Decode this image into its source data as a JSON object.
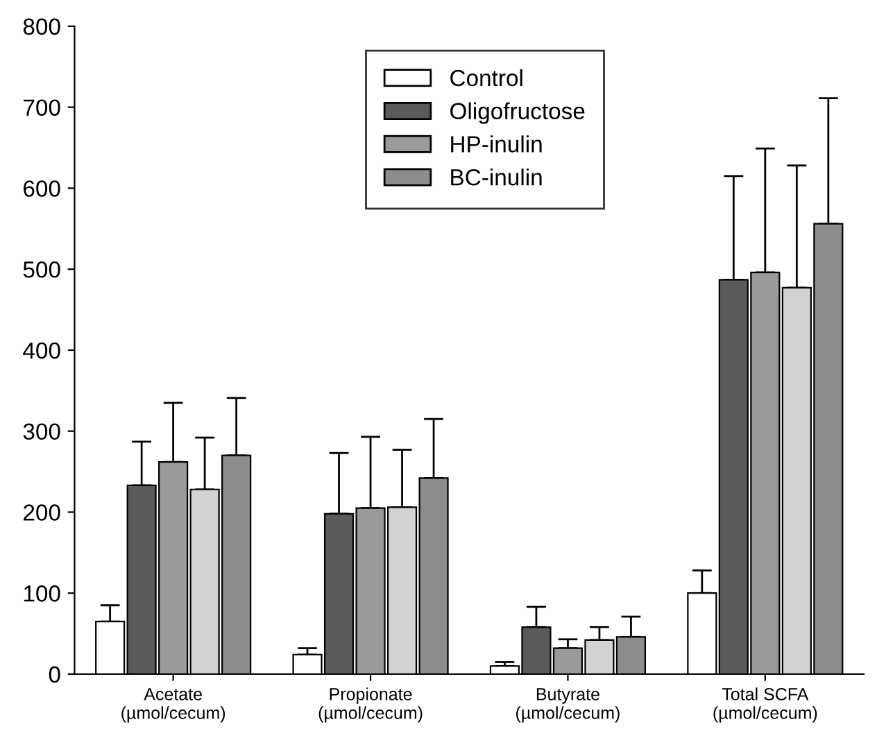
{
  "chart_data": {
    "type": "bar",
    "categories": [
      "Acetate\n(µmol/cecum)",
      "Propionate\n(µmol/cecum)",
      "Butyrate\n(µmol/cecum)",
      "Total SCFA\n(µmol/cecum)"
    ],
    "series": [
      {
        "name": "Control",
        "color": "#ffffff",
        "values": [
          65,
          24,
          10,
          100
        ],
        "errors": [
          [
            65,
            85
          ],
          [
            24,
            32
          ],
          [
            10,
            15
          ],
          [
            100,
            128
          ]
        ]
      },
      {
        "name": "Oligofructose",
        "color": "#5a5a5a",
        "values": [
          233,
          198,
          58,
          487
        ],
        "errors": [
          [
            233,
            287
          ],
          [
            198,
            273
          ],
          [
            58,
            83
          ],
          [
            487,
            615
          ]
        ]
      },
      {
        "name": "HP-inulin",
        "color": "#9a9a9a",
        "values": [
          262,
          205,
          32,
          496
        ],
        "errors": [
          [
            262,
            335
          ],
          [
            205,
            293
          ],
          [
            32,
            43
          ],
          [
            496,
            649
          ]
        ]
      },
      {
        "color": "#d2d2d2",
        "values": [
          228,
          206,
          42,
          477
        ],
        "errors": [
          [
            228,
            292
          ],
          [
            206,
            277
          ],
          [
            42,
            58
          ],
          [
            477,
            628
          ]
        ]
      },
      {
        "name": "BC-inulin",
        "color": "#8c8c8c",
        "values": [
          270,
          242,
          46,
          556
        ],
        "errors": [
          [
            270,
            341
          ],
          [
            242,
            315
          ],
          [
            46,
            71
          ],
          [
            556,
            711
          ]
        ]
      }
    ],
    "ylim": [
      0,
      800
    ],
    "yticks": [
      0,
      100,
      200,
      300,
      400,
      500,
      600,
      700,
      800
    ],
    "legend": "top",
    "grid": false
  }
}
